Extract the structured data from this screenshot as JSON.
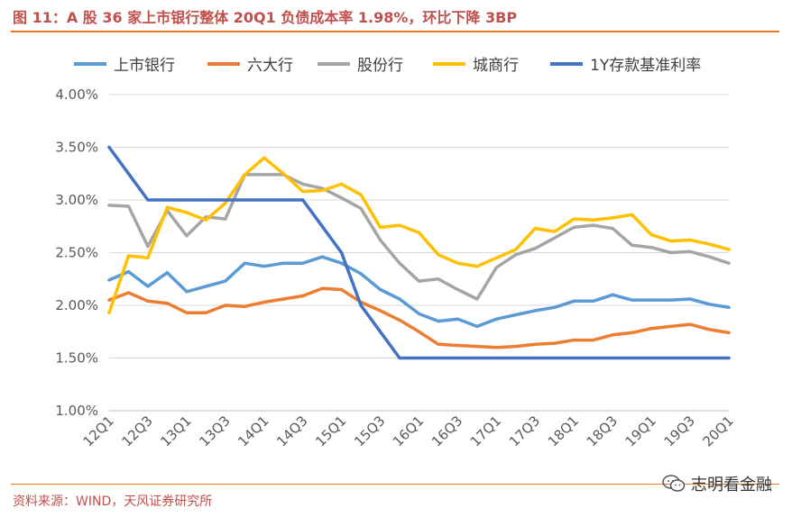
{
  "title": "图 11：A 股 36 家上市银行整体 20Q1 负债成本率 1.98%，环比下降 3BP",
  "source": "资料来源：WIND，天风证券研究所",
  "watermark": "志明看金融",
  "chart_data": {
    "type": "line",
    "ylim": [
      0.01,
      0.04
    ],
    "yticks": [
      "1.00%",
      "1.50%",
      "2.00%",
      "2.50%",
      "3.00%",
      "3.50%",
      "4.00%"
    ],
    "categories": [
      "12Q1",
      "12Q2",
      "12Q3",
      "12Q4",
      "13Q1",
      "13Q2",
      "13Q3",
      "13Q4",
      "14Q1",
      "14Q2",
      "14Q3",
      "14Q4",
      "15Q1",
      "15Q2",
      "15Q3",
      "15Q4",
      "16Q1",
      "16Q2",
      "16Q3",
      "16Q4",
      "17Q1",
      "17Q2",
      "17Q3",
      "17Q4",
      "18Q1",
      "18Q2",
      "18Q3",
      "18Q4",
      "19Q1",
      "19Q2",
      "19Q3",
      "19Q4",
      "20Q1"
    ],
    "xtick_labels": [
      "12Q1",
      "",
      "12Q3",
      "",
      "13Q1",
      "",
      "13Q3",
      "",
      "14Q1",
      "",
      "14Q3",
      "",
      "15Q1",
      "",
      "15Q3",
      "",
      "16Q1",
      "",
      "16Q3",
      "",
      "17Q1",
      "",
      "17Q3",
      "",
      "18Q1",
      "",
      "18Q3",
      "",
      "19Q1",
      "",
      "19Q3",
      "",
      "20Q1"
    ],
    "legend_position": "top",
    "series": [
      {
        "name": "上市银行",
        "color": "#5b9bd5",
        "values": [
          0.0224,
          0.0232,
          0.0218,
          0.0231,
          0.0213,
          0.0218,
          0.0223,
          0.024,
          0.0237,
          0.024,
          0.024,
          0.0246,
          0.024,
          0.023,
          0.0215,
          0.0206,
          0.0192,
          0.0185,
          0.0187,
          0.018,
          0.0187,
          0.0191,
          0.0195,
          0.0198,
          0.0204,
          0.0204,
          0.021,
          0.0205,
          0.0205,
          0.0205,
          0.0206,
          0.0201,
          0.0198
        ]
      },
      {
        "name": "六大行",
        "color": "#ed7d31",
        "values": [
          0.0205,
          0.0212,
          0.0204,
          0.0202,
          0.0193,
          0.0193,
          0.02,
          0.0199,
          0.0203,
          0.0206,
          0.0209,
          0.0216,
          0.0215,
          0.0203,
          0.0195,
          0.0186,
          0.0175,
          0.0163,
          0.0162,
          0.0161,
          0.016,
          0.0161,
          0.0163,
          0.0164,
          0.0167,
          0.0167,
          0.0172,
          0.0174,
          0.0178,
          0.018,
          0.0182,
          0.0177,
          0.0174
        ]
      },
      {
        "name": "股份行",
        "color": "#a5a5a5",
        "values": [
          0.0295,
          0.0294,
          0.0256,
          0.029,
          0.0266,
          0.0284,
          0.0282,
          0.0324,
          0.0324,
          0.0324,
          0.0315,
          0.0311,
          0.0302,
          0.0292,
          0.0262,
          0.024,
          0.0223,
          0.0225,
          0.0215,
          0.0206,
          0.0236,
          0.0248,
          0.0254,
          0.0264,
          0.0274,
          0.0276,
          0.0273,
          0.0257,
          0.0255,
          0.025,
          0.0251,
          0.0246,
          0.024
        ]
      },
      {
        "name": "城商行",
        "color": "#ffc000",
        "values": [
          0.0193,
          0.0247,
          0.0245,
          0.0293,
          0.0288,
          0.0281,
          0.0297,
          0.0324,
          0.034,
          0.0325,
          0.0308,
          0.0309,
          0.0315,
          0.0305,
          0.0274,
          0.0276,
          0.0269,
          0.0248,
          0.024,
          0.0237,
          0.0245,
          0.0253,
          0.0273,
          0.027,
          0.0282,
          0.0281,
          0.0283,
          0.0286,
          0.0267,
          0.0261,
          0.0262,
          0.0258,
          0.0253
        ]
      },
      {
        "name": "1Y存款基准利率",
        "color": "#4472c4",
        "values": [
          0.035,
          0.0325,
          0.03,
          0.03,
          0.03,
          0.03,
          0.03,
          0.03,
          0.03,
          0.03,
          0.03,
          0.0275,
          0.025,
          0.02,
          0.0175,
          0.015,
          0.015,
          0.015,
          0.015,
          0.015,
          0.015,
          0.015,
          0.015,
          0.015,
          0.015,
          0.015,
          0.015,
          0.015,
          0.015,
          0.015,
          0.015,
          0.015,
          0.015
        ]
      }
    ]
  }
}
